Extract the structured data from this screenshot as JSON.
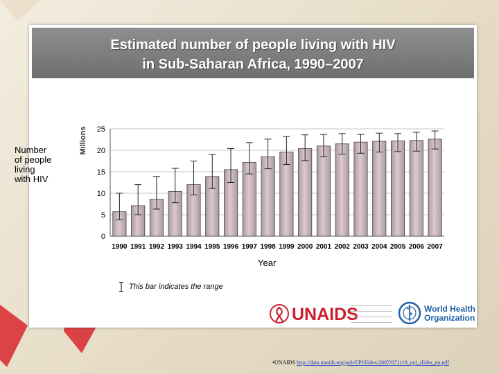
{
  "title_line1": "Estimated number of people living with HIV",
  "title_line2": "in Sub-Saharan Africa, 1990–2007",
  "ylabel_left": "Number\nof people\nliving\nwith HIV",
  "range_note": "This bar indicates the range",
  "logos": {
    "unaids_text": "UNAIDS",
    "who_text": "World Health\nOrganization"
  },
  "footer": {
    "prefix": "•UNAIDS ",
    "link": "http://data.unaids.org/pub/EPISlides/2007/071119_epi_slides_en.pdf"
  },
  "colors": {
    "bar_fill_top": "#dcc9cf",
    "bar_fill_bottom": "#a99aa0",
    "title_band": "#7d7d7d",
    "unaids_red": "#cc1f2f",
    "who_blue": "#1d5fa6"
  },
  "chart_data": {
    "type": "bar",
    "title": "Estimated number of people living with HIV in Sub-Saharan Africa, 1990–2007",
    "xlabel": "Year",
    "ylabel": "Millions",
    "ylim": [
      0,
      25
    ],
    "yticks": [
      0,
      5,
      10,
      15,
      20,
      25
    ],
    "grid": true,
    "categories": [
      "1990",
      "1991",
      "1992",
      "1993",
      "1994",
      "1995",
      "1996",
      "1997",
      "1998",
      "1999",
      "2000",
      "2001",
      "2002",
      "2003",
      "2004",
      "2005",
      "2006",
      "2007"
    ],
    "values": [
      5.7,
      7.1,
      8.6,
      10.4,
      12.0,
      13.9,
      15.5,
      17.2,
      18.5,
      19.6,
      20.4,
      21.0,
      21.5,
      21.9,
      22.1,
      22.2,
      22.3,
      22.6
    ],
    "range_low": [
      3.8,
      5.0,
      6.3,
      7.8,
      9.6,
      11.1,
      12.5,
      14.5,
      15.7,
      16.7,
      17.6,
      18.5,
      19.1,
      19.3,
      19.6,
      19.7,
      19.8,
      20.3
    ],
    "range_high": [
      10.0,
      12.0,
      13.9,
      15.8,
      17.5,
      19.0,
      20.4,
      21.8,
      22.6,
      23.2,
      23.6,
      23.7,
      23.9,
      23.7,
      24.0,
      23.9,
      24.2,
      24.5
    ]
  }
}
